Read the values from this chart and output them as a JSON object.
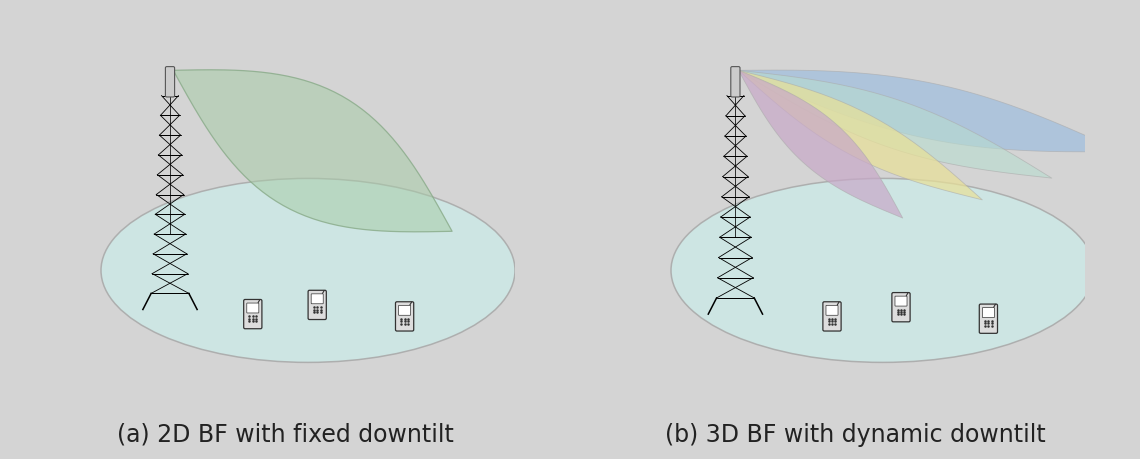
{
  "background_color": "#d4d4d4",
  "title_a": "(a) 2D BF with fixed downtilt",
  "title_b": "(b) 3D BF with dynamic downtilt",
  "title_fontsize": 17,
  "title_color": "#222222",
  "ground_color": "#cde8e5",
  "ground_edge": "#aaaaaa",
  "beam_2d_color": "#a8cca8",
  "beam_2d_alpha": 0.55,
  "beam_2d_edge": "#88aa88",
  "beam_colors": [
    "#c8a8c8",
    "#e8e098",
    "#b8ddd0",
    "#9abce0"
  ],
  "beam_alphas": [
    0.7,
    0.72,
    0.6,
    0.65
  ],
  "beam_edge_color": "#aaaaaa"
}
